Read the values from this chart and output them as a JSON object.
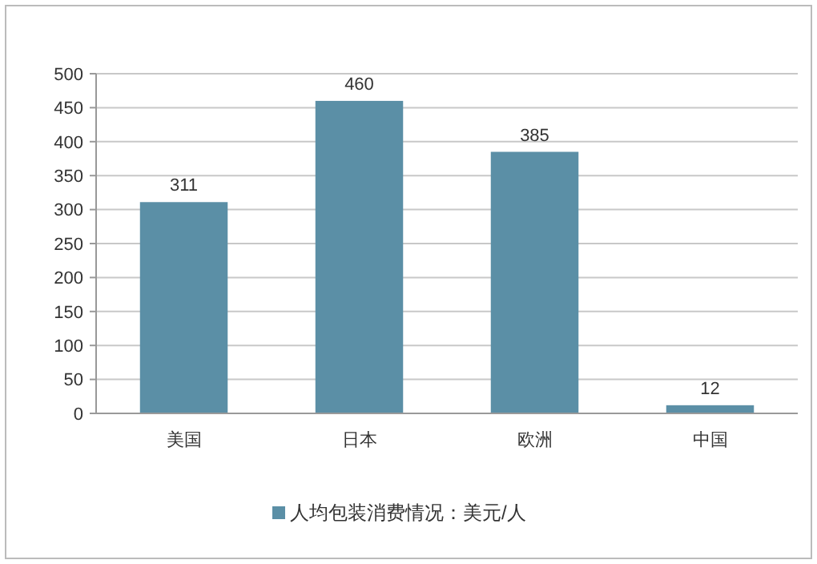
{
  "chart_data": {
    "type": "bar",
    "categories": [
      "美国",
      "日本",
      "欧洲",
      "中国"
    ],
    "series": [
      {
        "name": "人均包装消费情况：美元/人",
        "color": "#5b8fa6",
        "values": [
          311,
          460,
          385,
          12
        ]
      }
    ],
    "ylim": [
      0,
      500
    ],
    "yticks": [
      0,
      50,
      100,
      150,
      200,
      250,
      300,
      350,
      400,
      450,
      500
    ],
    "grid": "y",
    "data_labels": true,
    "legend": "bottom"
  }
}
